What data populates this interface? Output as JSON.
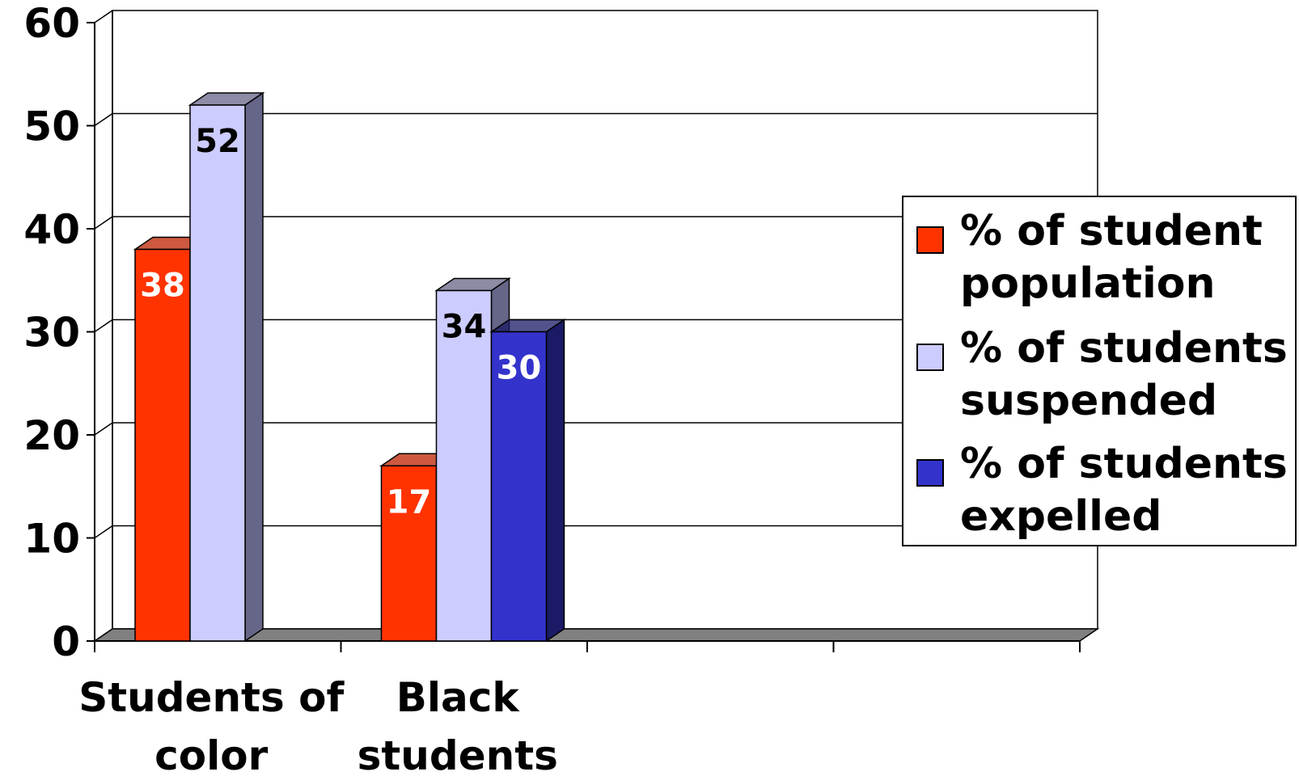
{
  "chart_data": {
    "type": "bar",
    "categories": [
      "Students of color",
      "Black students",
      "",
      ""
    ],
    "series": [
      {
        "name": "% of student population",
        "values": [
          38,
          17,
          null,
          null
        ],
        "color": "#FF3300",
        "side_color": "#BB2200",
        "label_color": "#FFFFFF"
      },
      {
        "name": "% of students suspended",
        "values": [
          52,
          34,
          null,
          null
        ],
        "color": "#CCCCFF",
        "side_color": "#666688",
        "label_color": "#000000"
      },
      {
        "name": "% of students expelled",
        "values": [
          null,
          30,
          null,
          null
        ],
        "color": "#3333CC",
        "side_color": "#1A1A66",
        "label_color": "#FFFFFF"
      }
    ],
    "ylim": [
      0,
      60
    ],
    "yticks": [
      "0",
      "10",
      "20",
      "30",
      "40",
      "50",
      "60"
    ],
    "grid": true,
    "legend_position": "right",
    "floor_color": "#808080"
  }
}
